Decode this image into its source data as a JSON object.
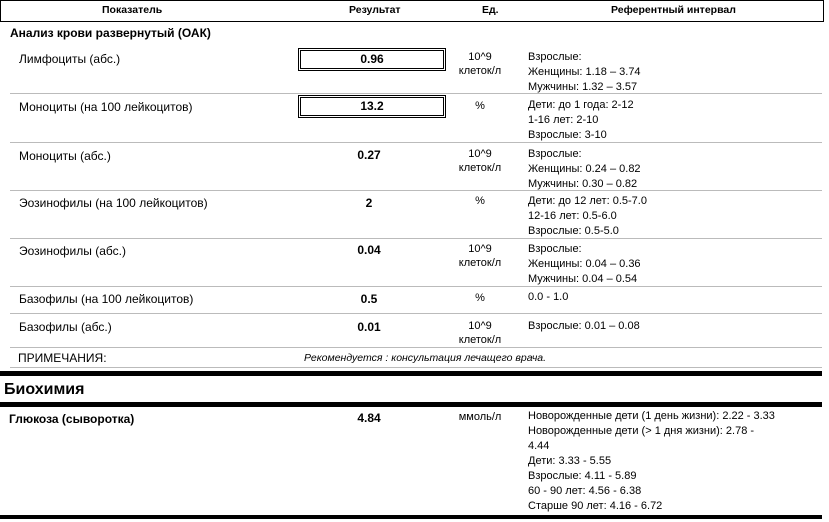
{
  "header": {
    "indicator": "Показатель",
    "result": "Результат",
    "unit": "Ед.",
    "reference": "Референтный интервал"
  },
  "section_cbc": "Анализ крови развернутый (ОАК)",
  "rows": [
    {
      "name": "Лимфоциты (абс.)",
      "result": "0.96",
      "unit": [
        "10^9",
        "клеток/л"
      ],
      "ref": [
        "Взрослые:",
        "Женщины: 1.18 – 3.74",
        "Мужчины: 1.32 – 3.57"
      ]
    },
    {
      "name": "Моноциты (на 100 лейкоцитов)",
      "result": "13.2",
      "unit": [
        "%",
        ""
      ],
      "ref": [
        "Дети: до 1 года: 2-12",
        "1-16 лет: 2-10",
        "Взрослые: 3-10"
      ]
    },
    {
      "name": "Моноциты (абс.)",
      "result": "0.27",
      "unit": [
        "10^9",
        "клеток/л"
      ],
      "ref": [
        "Взрослые:",
        "Женщины: 0.24 – 0.82",
        "Мужчины: 0.30 – 0.82"
      ]
    },
    {
      "name": "Эозинофилы (на 100 лейкоцитов)",
      "result": "2",
      "unit": [
        "%",
        ""
      ],
      "ref": [
        "Дети: до 12 лет: 0.5-7.0",
        "12-16 лет: 0.5-6.0",
        "Взрослые: 0.5-5.0"
      ]
    },
    {
      "name": "Эозинофилы (абс.)",
      "result": "0.04",
      "unit": [
        "10^9",
        "клеток/л"
      ],
      "ref": [
        "Взрослые:",
        "Женщины: 0.04 – 0.36",
        "Мужчины: 0.04 – 0.54"
      ]
    },
    {
      "name": "Базофилы (на 100 лейкоцитов)",
      "result": "0.5",
      "unit": [
        "%",
        ""
      ],
      "ref": [
        "0.0 - 1.0",
        "",
        ""
      ]
    },
    {
      "name": "Базофилы (абс.)",
      "result": "0.01",
      "unit": [
        "10^9",
        "клеток/л"
      ],
      "ref": [
        "Взрослые: 0.01 – 0.08",
        "",
        ""
      ]
    }
  ],
  "notes": {
    "label": "ПРИМЕЧАНИЯ:",
    "text": "Рекомендуется : консультация  лечащего врача."
  },
  "section_bio": "Биохимия",
  "glucose": {
    "name": "Глюкоза (сыворотка)",
    "result": "4.84",
    "unit": "ммоль/л",
    "ref": [
      "Новорожденные дети (1 день жизни): 2.22 - 3.33",
      "Новорожденные дети (> 1 дня жизни): 2.78 -",
      "4.44",
      "Дети: 3.33 - 5.55",
      "Взрослые: 4.11 - 5.89",
      "60 - 90 лет: 4.56 - 6.38",
      "Старше 90 лет: 4.16 - 6.72"
    ]
  }
}
